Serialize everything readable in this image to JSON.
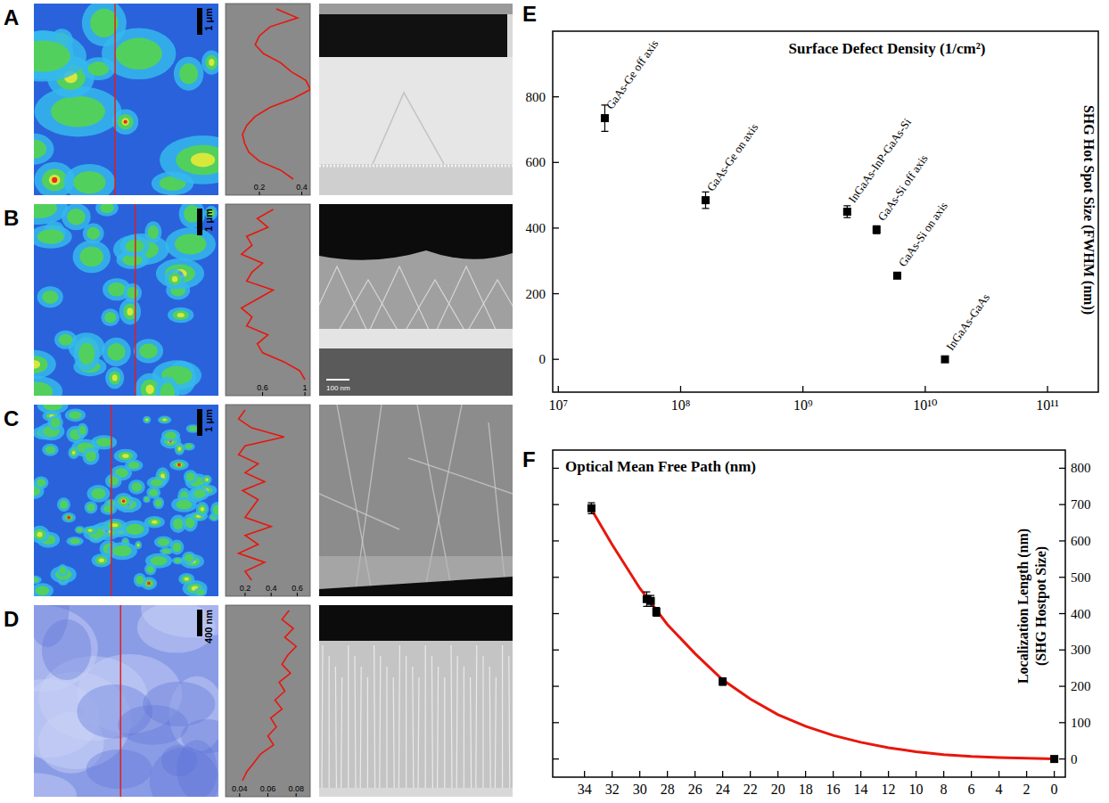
{
  "panels": [
    {
      "letter": "A",
      "scale_bar": "1 μm",
      "profile": {
        "xlim": [
          0.04,
          0.44
        ],
        "xticks": [
          0.2,
          0.4
        ],
        "values": [
          0.28,
          0.38,
          0.25,
          0.2,
          0.18,
          0.22,
          0.3,
          0.35,
          0.42,
          0.44,
          0.36,
          0.25,
          0.18,
          0.14,
          0.12,
          0.13,
          0.15,
          0.2,
          0.3,
          0.36
        ]
      }
    },
    {
      "letter": "B",
      "scale_bar": "1 μm",
      "tem_scale_bar": "100 nm",
      "profile": {
        "xlim": [
          0.25,
          1.05
        ],
        "xticks": [
          0.6,
          1.0
        ],
        "values": [
          0.7,
          0.55,
          0.65,
          0.45,
          0.5,
          0.4,
          0.6,
          0.5,
          0.45,
          0.7,
          0.55,
          0.4,
          0.5,
          0.45,
          0.65,
          0.55,
          0.6,
          0.8,
          0.95,
          1.0
        ]
      }
    },
    {
      "letter": "C",
      "scale_bar": "1 μm",
      "profile": {
        "xlim": [
          0.05,
          0.7
        ],
        "xticks": [
          0.2,
          0.4,
          0.6
        ],
        "values": [
          0.2,
          0.15,
          0.25,
          0.5,
          0.2,
          0.15,
          0.3,
          0.2,
          0.35,
          0.18,
          0.3,
          0.25,
          0.2,
          0.4,
          0.2,
          0.3,
          0.15,
          0.35,
          0.2,
          0.25
        ]
      }
    },
    {
      "letter": "D",
      "scale_bar": "400 nm",
      "profile": {
        "xlim": [
          0.03,
          0.09
        ],
        "xticks": [
          0.04,
          0.06,
          0.08
        ],
        "values": [
          0.075,
          0.07,
          0.078,
          0.072,
          0.08,
          0.074,
          0.07,
          0.076,
          0.068,
          0.072,
          0.065,
          0.07,
          0.062,
          0.066,
          0.06,
          0.064,
          0.055,
          0.05,
          0.045,
          0.042
        ]
      }
    }
  ],
  "chart_data": [
    {
      "letter": "E",
      "type": "scatter",
      "x_label": "Surface Defect Density (1/cm²)",
      "y_label": "SHG Hot Spot Size (FWHM (nm))",
      "log": "x",
      "xlim": [
        9000000,
        260000000000
      ],
      "xticks": [
        {
          "value": 10000000,
          "label": "10⁷"
        },
        {
          "value": 100000000,
          "label": "10⁸"
        },
        {
          "value": 1000000000,
          "label": "10⁹"
        },
        {
          "value": 10000000000,
          "label": "10¹⁰"
        },
        {
          "value": 100000000000,
          "label": "10¹¹"
        }
      ],
      "ylim": [
        -100,
        1000
      ],
      "yticks": [
        0,
        200,
        400,
        600,
        800
      ],
      "labels": [
        "GaAs-Ge off axis",
        "GaAs-Ge on axis",
        "InGaAs-InP-GaAs-Si",
        "GaAs-Si off axis",
        "GaAs-Si on axis",
        "InGaAs-GaAs"
      ],
      "x": [
        24000000,
        160000000,
        2300000000,
        4000000000,
        5900000000,
        14500000000
      ],
      "values": [
        735,
        485,
        450,
        395,
        255,
        0
      ],
      "errors": [
        40,
        25,
        18,
        12,
        5,
        5
      ],
      "color": "#000000",
      "marker": "square"
    },
    {
      "letter": "F",
      "type": "scatter",
      "x_label": "Optical Mean Free Path (nm)",
      "y_label": "Localization Length (nm)",
      "y_label_2": "(SHG Hostpot Size)",
      "xlim": [
        36.3,
        -0.8
      ],
      "xticks": [
        34,
        32,
        30,
        28,
        26,
        24,
        22,
        20,
        18,
        16,
        14,
        12,
        10,
        8,
        6,
        4,
        2,
        0
      ],
      "ylim": [
        -50,
        850
      ],
      "yticks": [
        0,
        100,
        200,
        300,
        400,
        500,
        600,
        700,
        800
      ],
      "tick_labels": "y",
      "x": [
        33.5,
        29.5,
        29.2,
        28.8,
        24,
        0
      ],
      "values": [
        690,
        440,
        435,
        405,
        213,
        0
      ],
      "errors": [
        15,
        20,
        15,
        12,
        10,
        3
      ],
      "color": "#000000",
      "marker": "square",
      "fit": {
        "type": "line",
        "color": "#e8160c",
        "x": [
          33.7,
          32,
          30,
          28,
          26,
          24,
          22,
          20,
          18,
          16,
          14,
          12,
          10,
          8,
          6,
          4,
          2,
          0
        ],
        "values": [
          700,
          590,
          470,
          370,
          290,
          218,
          165,
          122,
          90,
          65,
          46,
          31,
          20,
          12,
          7,
          4,
          2,
          0
        ]
      }
    }
  ]
}
